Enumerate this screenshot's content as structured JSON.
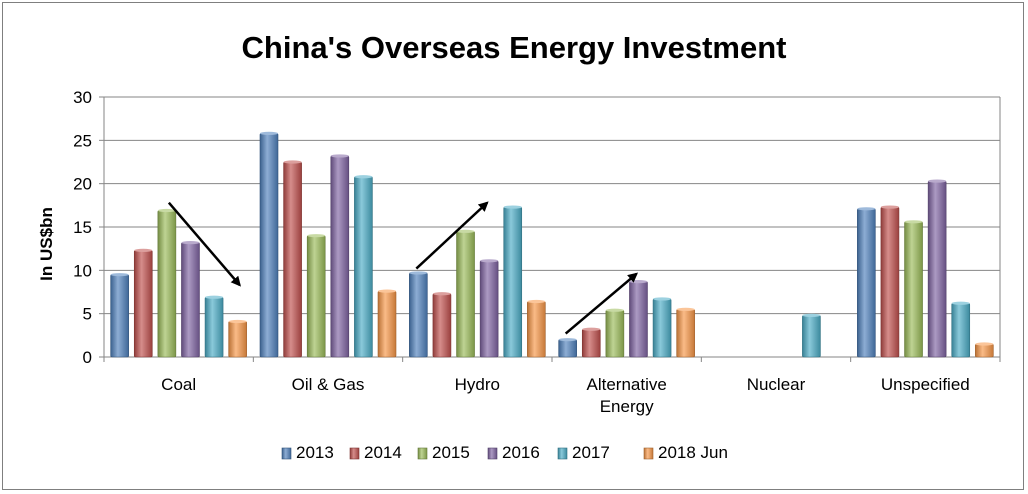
{
  "chart_data": {
    "type": "bar",
    "title": "China's Overseas Energy Investment",
    "xlabel": "",
    "ylabel": "In US$bn",
    "ylim": [
      0,
      30
    ],
    "yticks": [
      0,
      5,
      10,
      15,
      20,
      25,
      30
    ],
    "grid": true,
    "legend_position": "bottom",
    "categories": [
      [
        "Coal"
      ],
      [
        "Oil & Gas"
      ],
      [
        "Hydro"
      ],
      [
        "Alternative",
        "Energy"
      ],
      [
        "Nuclear"
      ],
      [
        "Unspecified"
      ]
    ],
    "series": [
      {
        "name": "2013",
        "color": "#4f81bd",
        "values": [
          9.5,
          25.8,
          9.7,
          2.0,
          0,
          17.1
        ]
      },
      {
        "name": "2014",
        "color": "#c0504d",
        "values": [
          12.3,
          22.5,
          7.3,
          3.2,
          0,
          17.3
        ]
      },
      {
        "name": "2015",
        "color": "#9bbb59",
        "values": [
          16.9,
          14.0,
          14.5,
          5.4,
          0,
          15.6
        ]
      },
      {
        "name": "2016",
        "color": "#8064a2",
        "values": [
          13.2,
          23.2,
          11.1,
          8.7,
          0,
          20.3
        ]
      },
      {
        "name": "2017",
        "color": "#4bacc6",
        "values": [
          6.9,
          20.8,
          17.3,
          6.7,
          4.8,
          6.2
        ]
      },
      {
        "name": "2018 Jun",
        "color": "#f79646",
        "values": [
          4.1,
          7.6,
          6.4,
          5.5,
          0,
          1.5
        ]
      }
    ],
    "annotations": [
      {
        "type": "arrow",
        "from": {
          "category": 0,
          "value": 17.8
        },
        "to": {
          "category": 0,
          "value": 8.3
        },
        "direction": "down"
      },
      {
        "type": "arrow",
        "from": {
          "category": 2,
          "value": 10.2
        },
        "to": {
          "category": 2,
          "value": 17.8
        },
        "direction": "up"
      },
      {
        "type": "arrow",
        "from": {
          "category": 3,
          "value": 2.7
        },
        "to": {
          "category": 3,
          "value": 9.6
        },
        "direction": "up"
      }
    ]
  }
}
